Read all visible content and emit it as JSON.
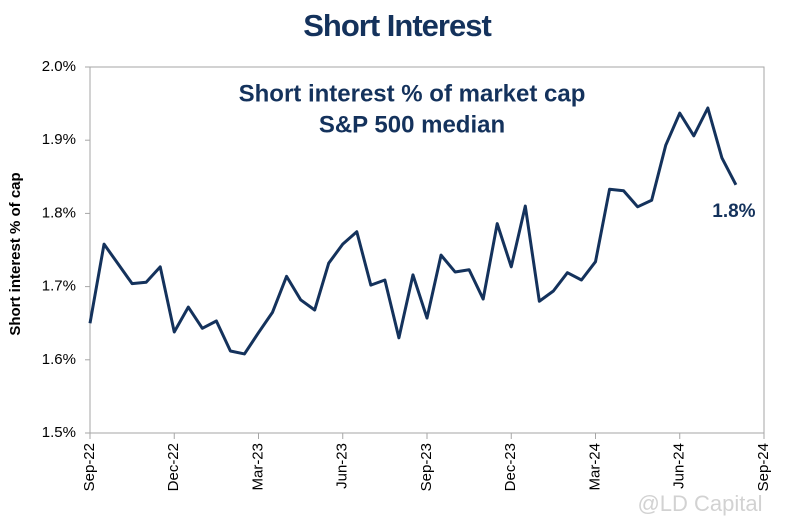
{
  "chart_data": {
    "type": "line",
    "title": "Short Interest",
    "subtitle": [
      "Short interest % of market cap",
      "S&P 500 median"
    ],
    "y_label": "Short interest % of cap",
    "watermark": "@LD Capital",
    "categories": [
      "Sep-22",
      null,
      null,
      null,
      null,
      null,
      "Dec-22",
      null,
      null,
      null,
      null,
      null,
      "Mar-23",
      null,
      null,
      null,
      null,
      null,
      "Jun-23",
      null,
      null,
      null,
      null,
      null,
      "Sep-23",
      null,
      null,
      null,
      null,
      null,
      "Dec-23",
      null,
      null,
      null,
      null,
      null,
      "Mar-24",
      null,
      null,
      null,
      null,
      null,
      "Jun-24",
      null,
      null,
      null,
      null,
      null,
      "Sep-24"
    ],
    "series": [
      {
        "name": "S&P 500 median",
        "color": "#14325c",
        "values": [
          1.65,
          1.758,
          1.731,
          1.704,
          1.706,
          1.727,
          1.638,
          1.672,
          1.643,
          1.653,
          1.612,
          1.608,
          1.637,
          1.665,
          1.714,
          1.682,
          1.668,
          1.732,
          1.758,
          1.775,
          1.702,
          1.709,
          1.63,
          1.716,
          1.657,
          1.743,
          1.72,
          1.723,
          1.683,
          1.786,
          1.727,
          1.81,
          1.68,
          1.694,
          1.719,
          1.709,
          1.734,
          1.833,
          1.831,
          1.809,
          1.818,
          1.893,
          1.937,
          1.906,
          1.944,
          1.876,
          1.839,
          null,
          null
        ],
        "value_labels": [
          null,
          null,
          null,
          null,
          null,
          null,
          null,
          null,
          null,
          null,
          null,
          null,
          null,
          null,
          null,
          null,
          null,
          null,
          null,
          null,
          null,
          null,
          null,
          null,
          null,
          null,
          null,
          null,
          null,
          null,
          null,
          null,
          null,
          null,
          null,
          null,
          null,
          null,
          null,
          null,
          null,
          null,
          null,
          null,
          null,
          null,
          "1.8%",
          null,
          null
        ]
      }
    ],
    "ylim": [
      1.5,
      2.0
    ],
    "yticks": [
      {
        "value": 1.5,
        "label": "1.5%"
      },
      {
        "value": 1.6,
        "label": "1.6%"
      },
      {
        "value": 1.7,
        "label": "1.7%"
      },
      {
        "value": 1.8,
        "label": "1.8%"
      },
      {
        "value": 1.9,
        "label": "1.9%"
      },
      {
        "value": 2.0,
        "label": "2.0%"
      }
    ],
    "grid": false
  }
}
